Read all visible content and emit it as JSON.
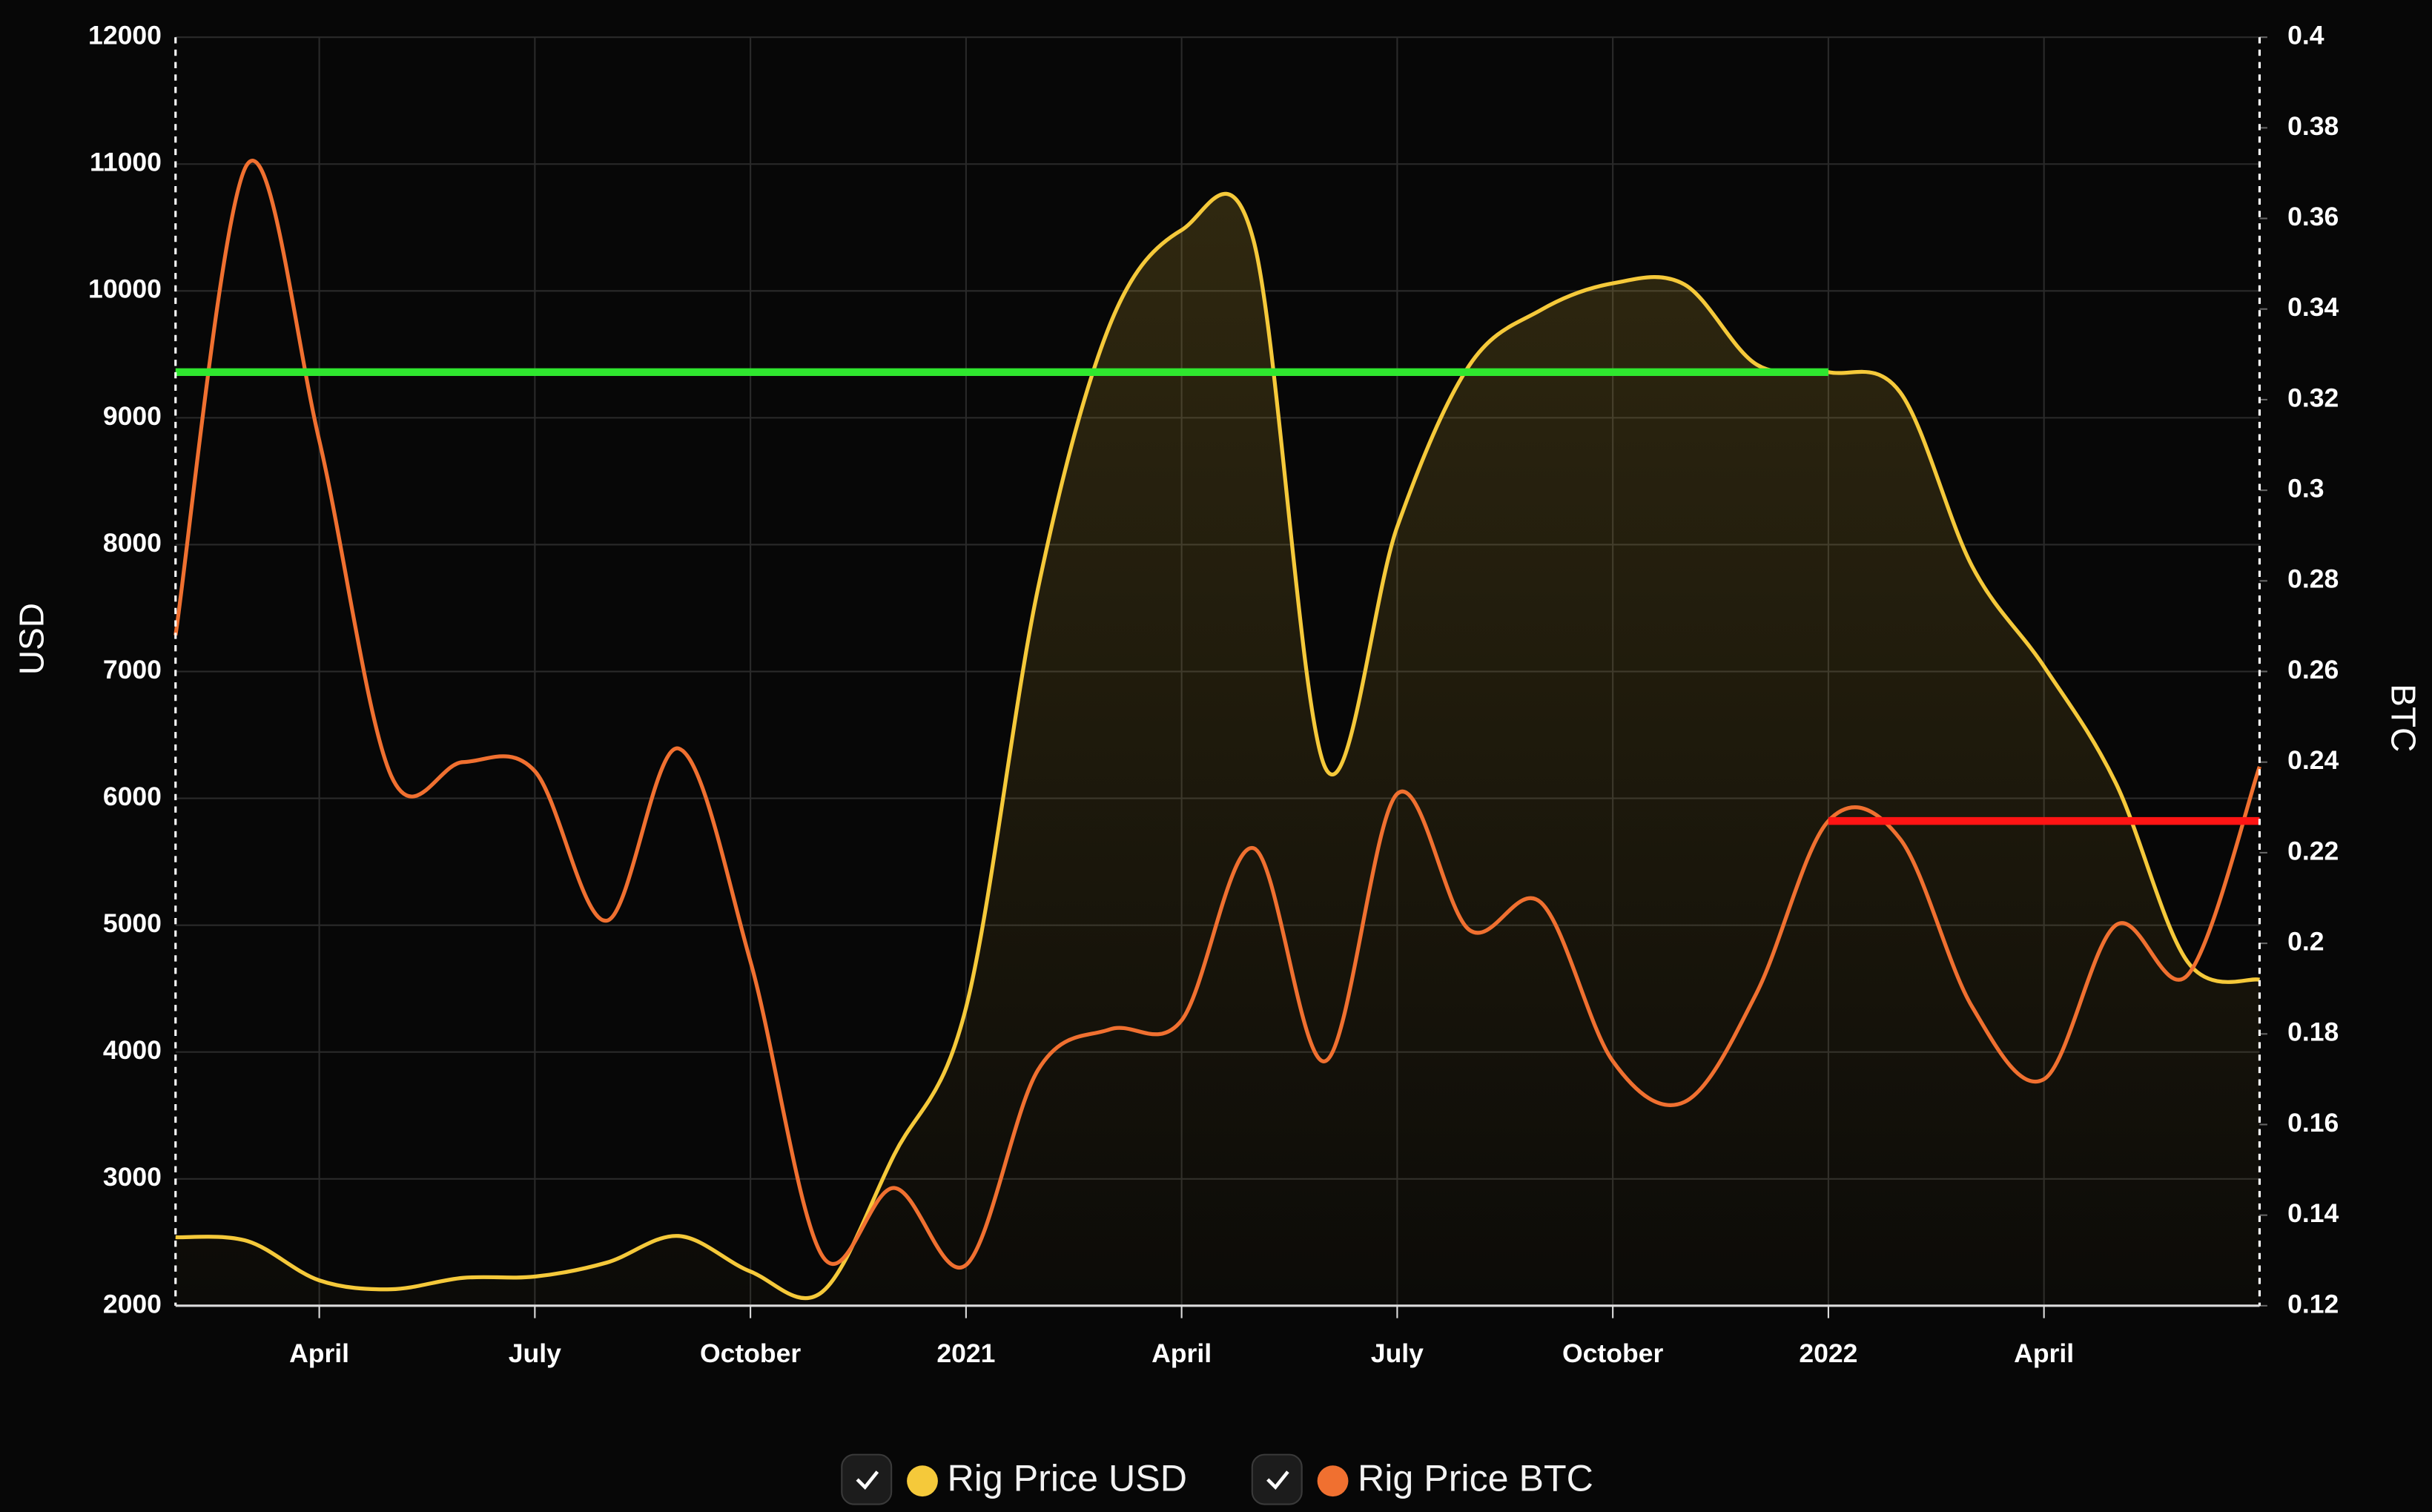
{
  "chart_data": {
    "type": "line",
    "y_label": "USD",
    "y2_label": "BTC",
    "x": [
      "2020-02",
      "2020-03",
      "2020-04",
      "2020-05",
      "2020-06",
      "2020-07",
      "2020-08",
      "2020-09",
      "2020-10",
      "2020-11",
      "2020-12",
      "2021-01",
      "2021-02",
      "2021-03",
      "2021-04",
      "2021-05",
      "2021-06",
      "2021-07",
      "2021-08",
      "2021-09",
      "2021-10",
      "2021-11",
      "2021-12",
      "2022-01",
      "2022-02",
      "2022-03",
      "2022-04",
      "2022-05",
      "2022-06",
      "2022-07"
    ],
    "xlim": [
      "2020-02",
      "2022-07"
    ],
    "xticks": [
      {
        "value": "2020-04",
        "label": "April"
      },
      {
        "value": "2020-07",
        "label": "July"
      },
      {
        "value": "2020-10",
        "label": "October"
      },
      {
        "value": "2021-01",
        "label": "2021"
      },
      {
        "value": "2021-04",
        "label": "April"
      },
      {
        "value": "2021-07",
        "label": "July"
      },
      {
        "value": "2021-10",
        "label": "October"
      },
      {
        "value": "2022-01",
        "label": "2022"
      },
      {
        "value": "2022-04",
        "label": "April"
      }
    ],
    "ylim": [
      2000,
      12000
    ],
    "yticks": [
      2000,
      3000,
      4000,
      5000,
      6000,
      7000,
      8000,
      9000,
      10000,
      11000,
      12000
    ],
    "y2lim": [
      0.12,
      0.4
    ],
    "y2ticks": [
      0.12,
      0.14,
      0.16,
      0.18,
      0.2,
      0.22,
      0.24,
      0.26,
      0.28,
      0.3,
      0.32,
      0.34,
      0.36,
      0.38,
      0.4
    ],
    "grid": true,
    "series": [
      {
        "name": "Rig Price USD",
        "color": "#f5c93a",
        "fill": true,
        "axis": "y",
        "values": [
          2540,
          2510,
          2200,
          2130,
          2220,
          2230,
          2340,
          2550,
          2270,
          2110,
          3190,
          4350,
          7650,
          9730,
          10480,
          10400,
          6240,
          8140,
          9410,
          9850,
          10060,
          10050,
          9420,
          9360,
          9200,
          7830,
          7040,
          6120,
          4710,
          4570
        ]
      },
      {
        "name": "Rig Price BTC",
        "color": "#f07030",
        "fill": false,
        "axis": "y2",
        "values": [
          0.268,
          0.372,
          0.311,
          0.237,
          0.24,
          0.238,
          0.205,
          0.243,
          0.196,
          0.131,
          0.146,
          0.129,
          0.172,
          0.181,
          0.183,
          0.221,
          0.174,
          0.233,
          0.203,
          0.209,
          0.174,
          0.165,
          0.189,
          0.227,
          0.223,
          0.186,
          0.17,
          0.204,
          0.193,
          0.239
        ]
      }
    ],
    "reference_lines": [
      {
        "axis": "y",
        "value": 9360,
        "from": "2020-02",
        "to": "2022-01",
        "color": "#2fe62f"
      },
      {
        "axis": "y2",
        "value": 0.227,
        "from": "2022-01",
        "to": "2022-07",
        "color": "#ff1414"
      }
    ]
  }
}
